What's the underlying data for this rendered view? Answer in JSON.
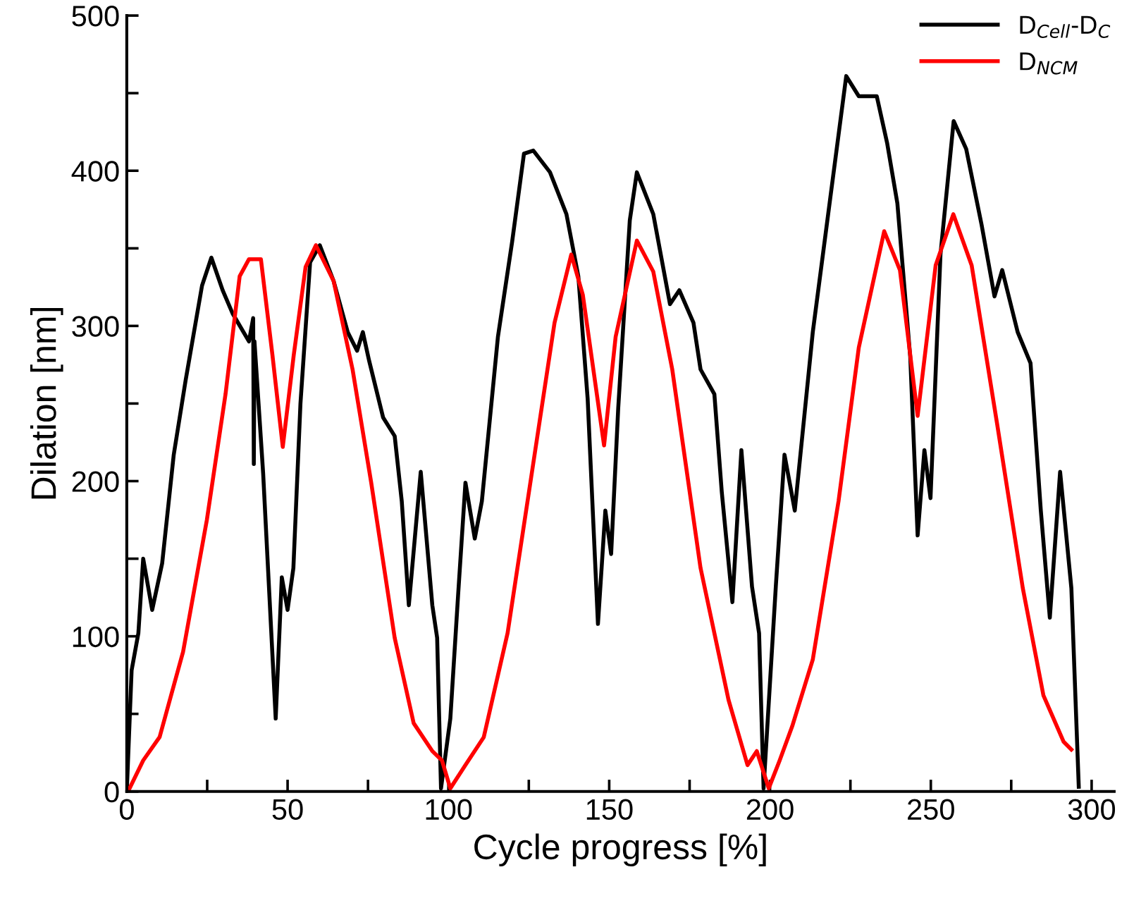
{
  "chart_data": {
    "type": "line",
    "xlabel": "Cycle progress [%]",
    "ylabel": "Dilation [nm]",
    "xlim": [
      0,
      307
    ],
    "ylim": [
      0,
      500
    ],
    "xticks": [
      0,
      {
        "value": 25,
        "label": null
      },
      50,
      {
        "value": 75,
        "label": null
      },
      100,
      {
        "value": 125,
        "label": null
      },
      150,
      {
        "value": 175,
        "label": null
      },
      200,
      {
        "value": 225,
        "label": null
      },
      250,
      {
        "value": 275,
        "label": null
      },
      300
    ],
    "yticks": [
      0,
      {
        "value": 50,
        "label": null
      },
      100,
      {
        "value": 150,
        "label": null
      },
      200,
      {
        "value": 250,
        "label": null
      },
      300,
      {
        "value": 350,
        "label": null
      },
      400,
      {
        "value": 450,
        "label": null
      },
      500
    ],
    "grid": false,
    "legend": "top right",
    "marker": "none",
    "line_style": "solid",
    "series": [
      {
        "name": "D$_{Cell}$-D$_{C}$",
        "color": "#000000",
        "x": [
          0,
          1.5,
          3.6,
          5.1,
          7.9,
          11,
          14.6,
          18.3,
          23.4,
          26.3,
          29.8,
          32.9,
          38,
          39.3,
          39.5,
          39.7,
          42.4,
          46.3,
          48.2,
          50,
          51.8,
          54,
          57,
          60,
          64.3,
          68.7,
          71.6,
          73.4,
          75.3,
          79.7,
          83.3,
          85.5,
          87.7,
          91.4,
          95,
          96.5,
          97.7,
          100.6,
          103,
          105.3,
          108.2,
          110.4,
          115.4,
          119.8,
          123.5,
          126.4,
          131.6,
          136.7,
          140.4,
          143.3,
          146.5,
          148.8,
          150.6,
          152.8,
          156.4,
          158.6,
          163.7,
          168.9,
          171.8,
          176.2,
          178.4,
          182.7,
          185,
          188.3,
          191.1,
          194.4,
          196.6,
          198,
          201.8,
          204.5,
          207.7,
          213.3,
          218.9,
          223.7,
          227.6,
          233.2,
          236.4,
          239.6,
          243.6,
          245.9,
          248,
          249.9,
          253,
          257.1,
          261,
          265.8,
          269.8,
          272.2,
          277,
          281,
          284.2,
          287,
          290.2,
          293.7,
          296
        ],
        "values": [
          0,
          78,
          102,
          150,
          117,
          147,
          217,
          265,
          326,
          344,
          323,
          308,
          290,
          305,
          211,
          290,
          205,
          47,
          138,
          117,
          144,
          250,
          341,
          352,
          329,
          296,
          284,
          296,
          278,
          241,
          229,
          187,
          120,
          206,
          120,
          99,
          2,
          47,
          126,
          199,
          163,
          187,
          293,
          354,
          411,
          413,
          399,
          372,
          332,
          253,
          108,
          181,
          153,
          247,
          368,
          399,
          372,
          314,
          323,
          302,
          272,
          256,
          193,
          122,
          220,
          132,
          102,
          2,
          132,
          217,
          181,
          296,
          385,
          461,
          448,
          448,
          418,
          379,
          280,
          165,
          220,
          189,
          346,
          432,
          414,
          365,
          319,
          336,
          296,
          276,
          181,
          112,
          206,
          131,
          3
        ]
      },
      {
        "name": "D$_{NCM}$",
        "color": "#ff0000",
        "x": [
          0.4,
          5.1,
          10.2,
          17.5,
          24.9,
          30.7,
          35.1,
          38,
          41.7,
          45.3,
          48.5,
          51.9,
          55.6,
          58.8,
          64.3,
          70.2,
          76,
          83.3,
          89.2,
          95,
          98,
          100.6,
          105.3,
          111,
          118.4,
          125.7,
          133,
          138.2,
          141.8,
          148.4,
          152,
          158.6,
          163.7,
          169.6,
          178.4,
          187.1,
          193,
          195.9,
          199.6,
          203,
          206.9,
          213.3,
          221.3,
          227.6,
          235.5,
          240.4,
          245.9,
          251.5,
          257,
          262.7,
          270.6,
          278.6,
          285,
          291.3,
          293.7
        ],
        "values": [
          0,
          20,
          35,
          90,
          175,
          256,
          332,
          343,
          343,
          281,
          222,
          281,
          338,
          352,
          329,
          272,
          199,
          99,
          44,
          26,
          20,
          2,
          17,
          35,
          102,
          202,
          302,
          346,
          320,
          223,
          293,
          355,
          335,
          272,
          144,
          59,
          17,
          26,
          2,
          20,
          42,
          85,
          187,
          286,
          361,
          336,
          242,
          339,
          372,
          339,
          237,
          131,
          62,
          32,
          27
        ]
      }
    ]
  }
}
